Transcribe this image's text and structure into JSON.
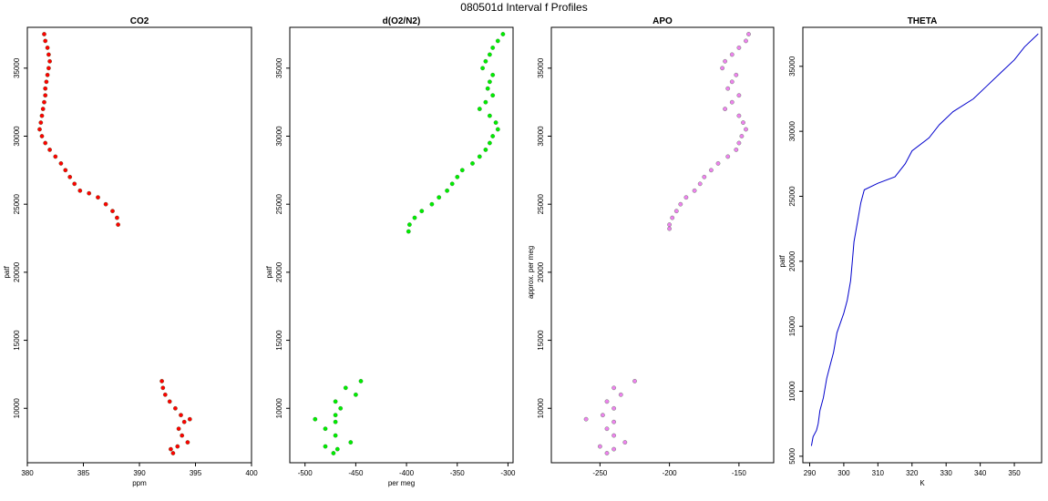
{
  "title": "080501d   Interval f Profiles",
  "chart_data": [
    {
      "type": "scatter",
      "title": "CO2",
      "xlabel": "ppm",
      "ylabel": "patf",
      "xlim": [
        380,
        400
      ],
      "ylim": [
        6000,
        38000
      ],
      "xticks": [
        380,
        385,
        390,
        395,
        400
      ],
      "yticks": [
        10000,
        15000,
        20000,
        25000,
        30000,
        35000
      ],
      "color": "#ff0000",
      "series": [
        {
          "values": [
            [
              381.5,
              37500
            ],
            [
              381.6,
              37000
            ],
            [
              381.8,
              36500
            ],
            [
              381.9,
              36000
            ],
            [
              382.0,
              35500
            ],
            [
              381.9,
              35000
            ],
            [
              381.8,
              34500
            ],
            [
              381.7,
              34000
            ],
            [
              381.6,
              33500
            ],
            [
              381.6,
              33000
            ],
            [
              381.5,
              32500
            ],
            [
              381.4,
              32000
            ],
            [
              381.3,
              31500
            ],
            [
              381.2,
              31000
            ],
            [
              381.1,
              30500
            ],
            [
              381.3,
              30000
            ],
            [
              381.6,
              29500
            ],
            [
              382.0,
              29000
            ],
            [
              382.5,
              28500
            ],
            [
              383.0,
              28000
            ],
            [
              383.4,
              27500
            ],
            [
              383.8,
              27000
            ],
            [
              384.2,
              26500
            ],
            [
              384.7,
              26000
            ],
            [
              385.5,
              25800
            ],
            [
              386.3,
              25500
            ],
            [
              387.0,
              25000
            ],
            [
              387.6,
              24500
            ],
            [
              388.0,
              24000
            ],
            [
              388.1,
              23500
            ],
            [
              392.0,
              12000
            ],
            [
              392.1,
              11500
            ],
            [
              392.3,
              11000
            ],
            [
              392.7,
              10500
            ],
            [
              393.2,
              10000
            ],
            [
              393.7,
              9500
            ],
            [
              394.5,
              9200
            ],
            [
              394.0,
              9000
            ],
            [
              393.5,
              8500
            ],
            [
              393.8,
              8000
            ],
            [
              394.3,
              7500
            ],
            [
              393.4,
              7200
            ],
            [
              392.8,
              7000
            ],
            [
              393.0,
              6700
            ]
          ]
        }
      ]
    },
    {
      "type": "scatter",
      "title": "d(O2/N2)",
      "xlabel": "per meg",
      "ylabel": "patf",
      "xlim": [
        -515,
        -295
      ],
      "ylim": [
        6000,
        38000
      ],
      "xticks": [
        -500,
        -450,
        -400,
        -350,
        -300
      ],
      "yticks": [
        10000,
        15000,
        20000,
        25000,
        30000,
        35000
      ],
      "color": "#00ee00",
      "series": [
        {
          "values": [
            [
              -305,
              37500
            ],
            [
              -310,
              37000
            ],
            [
              -315,
              36500
            ],
            [
              -318,
              36000
            ],
            [
              -322,
              35500
            ],
            [
              -325,
              35000
            ],
            [
              -315,
              34500
            ],
            [
              -318,
              34000
            ],
            [
              -320,
              33500
            ],
            [
              -315,
              33000
            ],
            [
              -322,
              32500
            ],
            [
              -328,
              32000
            ],
            [
              -318,
              31500
            ],
            [
              -312,
              31000
            ],
            [
              -310,
              30500
            ],
            [
              -315,
              30000
            ],
            [
              -318,
              29500
            ],
            [
              -322,
              29000
            ],
            [
              -328,
              28500
            ],
            [
              -335,
              28000
            ],
            [
              -345,
              27500
            ],
            [
              -350,
              27000
            ],
            [
              -355,
              26500
            ],
            [
              -360,
              26000
            ],
            [
              -368,
              25500
            ],
            [
              -375,
              25000
            ],
            [
              -385,
              24500
            ],
            [
              -392,
              24000
            ],
            [
              -397,
              23500
            ],
            [
              -398,
              23000
            ],
            [
              -445,
              12000
            ],
            [
              -460,
              11500
            ],
            [
              -450,
              11000
            ],
            [
              -470,
              10500
            ],
            [
              -465,
              10000
            ],
            [
              -470,
              9500
            ],
            [
              -490,
              9200
            ],
            [
              -470,
              9000
            ],
            [
              -480,
              8500
            ],
            [
              -470,
              8000
            ],
            [
              -455,
              7500
            ],
            [
              -480,
              7200
            ],
            [
              -468,
              7000
            ],
            [
              -472,
              6700
            ]
          ]
        }
      ]
    },
    {
      "type": "scatter",
      "title": "APO",
      "xlabel": "",
      "ylabel": "approx. per meg",
      "xlim": [
        -285,
        -125
      ],
      "ylim": [
        6000,
        38000
      ],
      "xticks": [
        -250,
        -200,
        -150
      ],
      "yticks": [
        10000,
        15000,
        20000,
        25000,
        30000,
        35000
      ],
      "color": "#ee82ee",
      "series": [
        {
          "values": [
            [
              -143,
              37500
            ],
            [
              -145,
              37000
            ],
            [
              -150,
              36500
            ],
            [
              -155,
              36000
            ],
            [
              -160,
              35500
            ],
            [
              -162,
              35000
            ],
            [
              -152,
              34500
            ],
            [
              -155,
              34000
            ],
            [
              -158,
              33500
            ],
            [
              -150,
              33000
            ],
            [
              -155,
              32500
            ],
            [
              -160,
              32000
            ],
            [
              -150,
              31500
            ],
            [
              -147,
              31000
            ],
            [
              -145,
              30500
            ],
            [
              -148,
              30000
            ],
            [
              -150,
              29500
            ],
            [
              -152,
              29000
            ],
            [
              -158,
              28500
            ],
            [
              -165,
              28000
            ],
            [
              -170,
              27500
            ],
            [
              -175,
              27000
            ],
            [
              -178,
              26500
            ],
            [
              -182,
              26000
            ],
            [
              -188,
              25500
            ],
            [
              -192,
              25000
            ],
            [
              -195,
              24500
            ],
            [
              -198,
              24000
            ],
            [
              -200,
              23500
            ],
            [
              -200,
              23200
            ],
            [
              -225,
              12000
            ],
            [
              -240,
              11500
            ],
            [
              -235,
              11000
            ],
            [
              -245,
              10500
            ],
            [
              -240,
              10000
            ],
            [
              -248,
              9500
            ],
            [
              -260,
              9200
            ],
            [
              -240,
              9000
            ],
            [
              -245,
              8500
            ],
            [
              -240,
              8000
            ],
            [
              -232,
              7500
            ],
            [
              -250,
              7200
            ],
            [
              -240,
              7000
            ],
            [
              -245,
              6700
            ]
          ]
        }
      ]
    },
    {
      "type": "line",
      "title": "THETA",
      "xlabel": "K",
      "ylabel": "patf",
      "xlim": [
        288,
        358
      ],
      "ylim": [
        4500,
        38000
      ],
      "xticks": [
        290,
        300,
        310,
        320,
        330,
        340,
        350
      ],
      "yticks": [
        5000,
        10000,
        15000,
        20000,
        25000,
        30000,
        35000
      ],
      "color": "#0000cc",
      "series": [
        {
          "values": [
            [
              290.5,
              5800
            ],
            [
              291.0,
              6500
            ],
            [
              292.0,
              7000
            ],
            [
              292.5,
              7500
            ],
            [
              293.0,
              8500
            ],
            [
              294.0,
              9500
            ],
            [
              295.0,
              11000
            ],
            [
              296.0,
              12000
            ],
            [
              297.0,
              13000
            ],
            [
              298.0,
              14500
            ],
            [
              300.0,
              16000
            ],
            [
              301.0,
              17000
            ],
            [
              302.0,
              18500
            ],
            [
              302.5,
              20000
            ],
            [
              303.0,
              21500
            ],
            [
              304.0,
              23000
            ],
            [
              305.0,
              24500
            ],
            [
              306.0,
              25500
            ],
            [
              310.0,
              26000
            ],
            [
              315.0,
              26500
            ],
            [
              318.0,
              27500
            ],
            [
              320.0,
              28500
            ],
            [
              325.0,
              29500
            ],
            [
              328.0,
              30500
            ],
            [
              332.0,
              31500
            ],
            [
              338.0,
              32500
            ],
            [
              342.0,
              33500
            ],
            [
              346.0,
              34500
            ],
            [
              350.0,
              35500
            ],
            [
              353.0,
              36500
            ],
            [
              357.0,
              37500
            ]
          ]
        }
      ]
    }
  ]
}
